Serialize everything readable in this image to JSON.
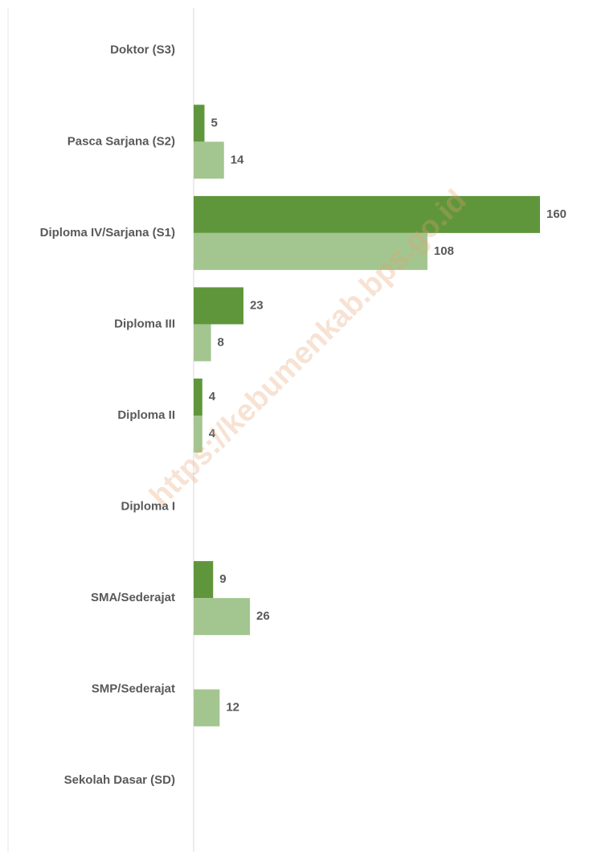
{
  "chart_data": {
    "type": "bar",
    "orientation": "horizontal",
    "categories": [
      "Doktor (S3)",
      "Pasca Sarjana (S2)",
      "Diploma IV/Sarjana (S1)",
      "Diploma III",
      "Diploma II",
      "Diploma I",
      "SMA/Sederajat",
      "SMP/Sederajat",
      "Sekolah Dasar (SD)"
    ],
    "series": [
      {
        "color": "#5f963b",
        "values": [
          null,
          5,
          160,
          23,
          4,
          null,
          9,
          null,
          null
        ]
      },
      {
        "color": "#a3c58f",
        "values": [
          null,
          14,
          108,
          8,
          4,
          null,
          26,
          12,
          null
        ]
      }
    ],
    "xlim": [
      0,
      160
    ],
    "watermark": "https://kebumenkab.bps.go.id"
  }
}
